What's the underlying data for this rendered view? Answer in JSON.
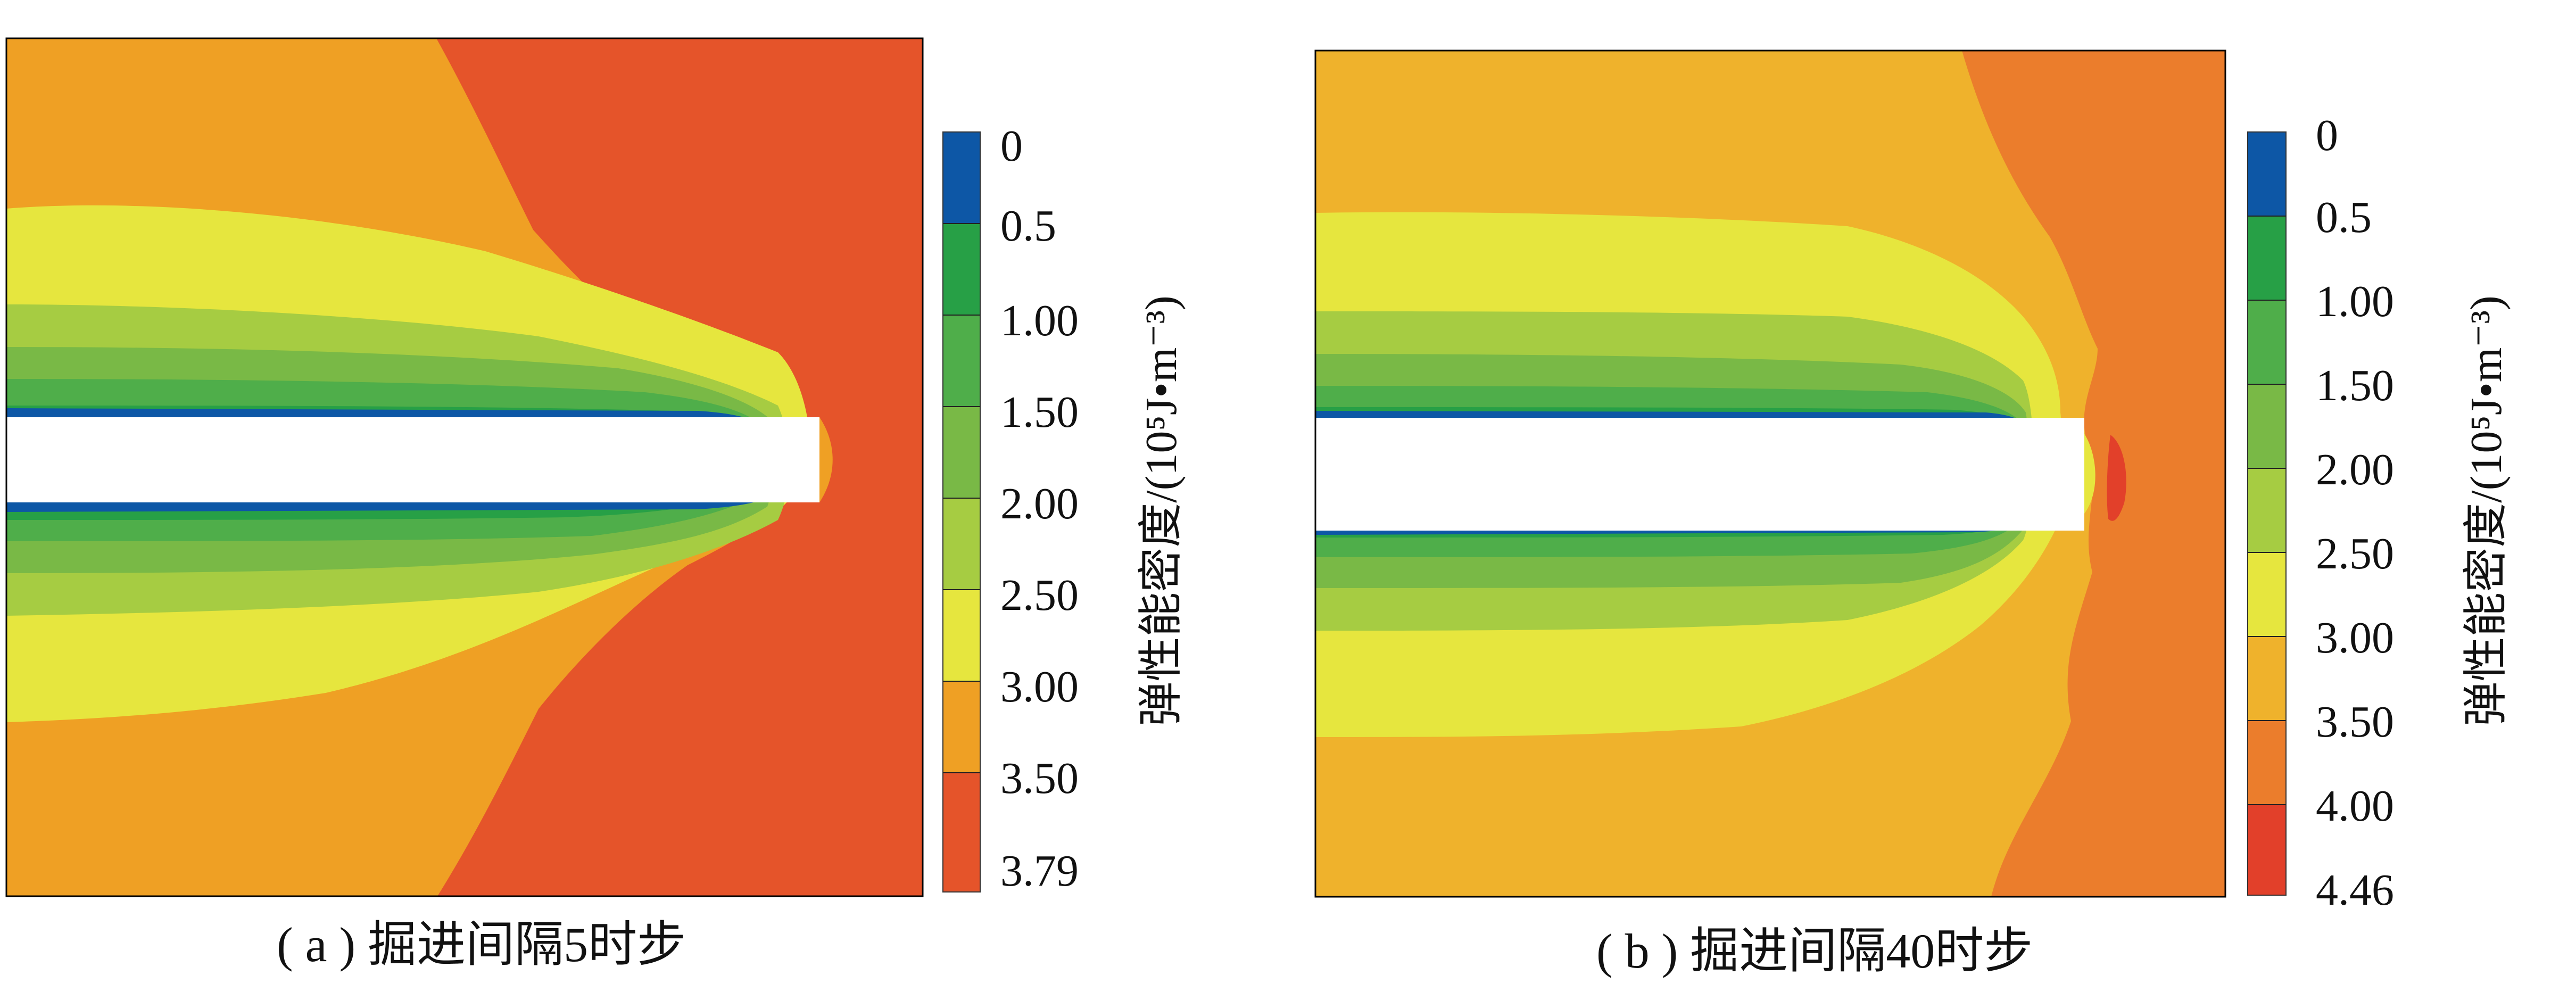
{
  "chart_data": [
    {
      "type": "heatmap",
      "caption": "( a ) 掘进间隔5时步",
      "colorbar_label": "弹性能密度/(10⁵J•m⁻³)",
      "colorbar": {
        "ticks": [
          "0",
          "0.5",
          "1.00",
          "1.50",
          "2.00",
          "2.50",
          "3.00",
          "3.50",
          "3.79"
        ],
        "colors": [
          "#0d57a6",
          "#27a046",
          "#4fae4a",
          "#79b946",
          "#a6cc42",
          "#e6e63e",
          "#efa024",
          "#e5542a"
        ]
      },
      "zones": [
        {
          "band": "0-0.5",
          "color": "#0d57a6"
        },
        {
          "band": "0.5-1.00",
          "color": "#27a046"
        },
        {
          "band": "1.00-1.50",
          "color": "#4fae4a"
        },
        {
          "band": "1.50-2.00",
          "color": "#79b946"
        },
        {
          "band": "2.00-2.50",
          "color": "#a6cc42"
        },
        {
          "band": "2.50-3.00",
          "color": "#e6e63e"
        },
        {
          "band": "3.00-3.50",
          "color": "#efa024"
        },
        {
          "band": "3.50-3.79",
          "color": "#e5542a"
        }
      ]
    },
    {
      "type": "heatmap",
      "caption": "( b ) 掘进间隔40时步",
      "colorbar_label": "弹性能密度/(10⁵J•m⁻³)",
      "colorbar": {
        "ticks": [
          "0",
          "0.5",
          "1.00",
          "1.50",
          "2.00",
          "2.50",
          "3.00",
          "3.50",
          "4.00",
          "4.46"
        ],
        "colors": [
          "#0d57a6",
          "#27a046",
          "#4fae4a",
          "#79b946",
          "#a6cc42",
          "#e6e63e",
          "#efb22c",
          "#eb7d2c",
          "#e2402a"
        ]
      },
      "zones": [
        {
          "band": "0-0.5",
          "color": "#0d57a6"
        },
        {
          "band": "0.5-1.00",
          "color": "#27a046"
        },
        {
          "band": "1.00-1.50",
          "color": "#4fae4a"
        },
        {
          "band": "1.50-2.00",
          "color": "#79b946"
        },
        {
          "band": "2.00-2.50",
          "color": "#a6cc42"
        },
        {
          "band": "2.50-3.00",
          "color": "#e6e63e"
        },
        {
          "band": "3.00-3.50",
          "color": "#efb22c"
        },
        {
          "band": "3.50-4.00",
          "color": "#eb7d2c"
        },
        {
          "band": "4.00-4.46",
          "color": "#e2402a"
        }
      ]
    }
  ]
}
